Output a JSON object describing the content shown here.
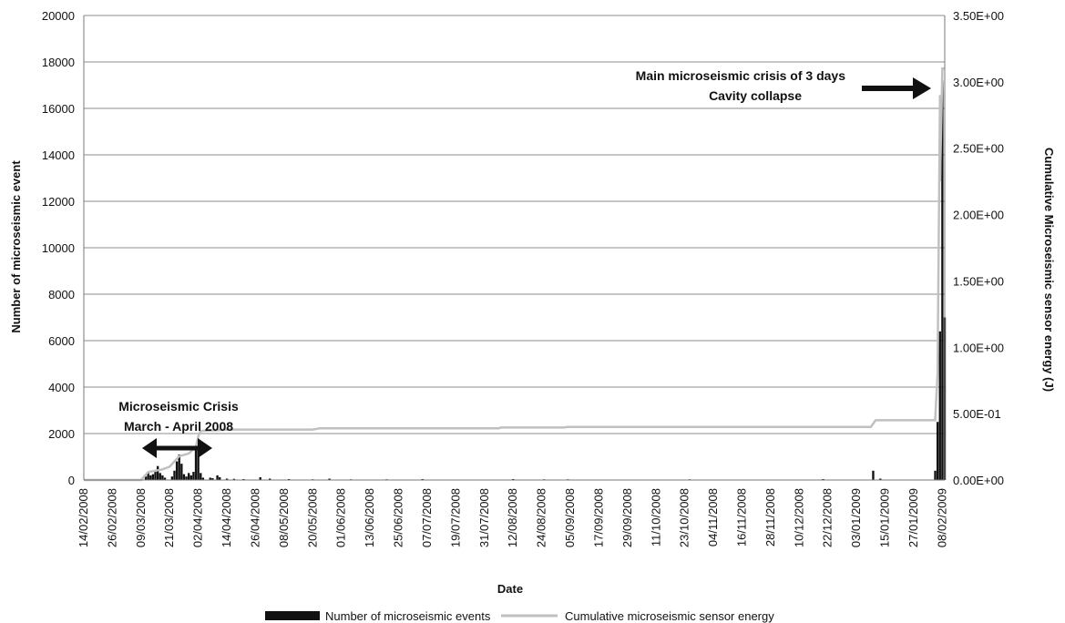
{
  "chart_data": {
    "type": "bar",
    "xlabel": "Date",
    "ylabel_left": "Number of microseismic event",
    "ylabel_right": "Cumulative Microseismic sensor energy (J)",
    "ylim_left": [
      0,
      20000
    ],
    "ylim_right": [
      0,
      3.5
    ],
    "yticks_left": [
      "0",
      "2000",
      "4000",
      "6000",
      "8000",
      "10000",
      "12000",
      "14000",
      "16000",
      "18000",
      "20000"
    ],
    "yticks_right": [
      "0.00E+00",
      "5.00E-01",
      "1.00E+00",
      "1.50E+00",
      "2.00E+00",
      "2.50E+00",
      "3.00E+00",
      "3.50E+00"
    ],
    "x_ticks": [
      "14/02/2008",
      "26/02/2008",
      "09/03/2008",
      "21/03/2008",
      "02/04/2008",
      "14/04/2008",
      "26/04/2008",
      "08/05/2008",
      "20/05/2008",
      "01/06/2008",
      "13/06/2008",
      "25/06/2008",
      "07/07/2008",
      "19/07/2008",
      "31/07/2008",
      "12/08/2008",
      "24/08/2008",
      "05/09/2008",
      "17/09/2008",
      "29/09/2008",
      "11/10/2008",
      "23/10/2008",
      "04/11/2008",
      "16/11/2008",
      "28/11/2008",
      "10/12/2008",
      "22/12/2008",
      "03/01/2009",
      "15/01/2009",
      "27/01/2009",
      "08/02/2009"
    ],
    "grid": true,
    "legend_position": "bottom",
    "series": [
      {
        "name": "Number of microseismic events",
        "axis": "left",
        "style": "bar",
        "color": "#111111",
        "points": [
          [
            "2008-03-11",
            150
          ],
          [
            "2008-03-12",
            300
          ],
          [
            "2008-03-13",
            200
          ],
          [
            "2008-03-14",
            250
          ],
          [
            "2008-03-15",
            350
          ],
          [
            "2008-03-16",
            600
          ],
          [
            "2008-03-17",
            300
          ],
          [
            "2008-03-18",
            200
          ],
          [
            "2008-03-19",
            100
          ],
          [
            "2008-03-22",
            150
          ],
          [
            "2008-03-23",
            400
          ],
          [
            "2008-03-24",
            800
          ],
          [
            "2008-03-25",
            1100
          ],
          [
            "2008-03-26",
            700
          ],
          [
            "2008-03-27",
            250
          ],
          [
            "2008-03-28",
            150
          ],
          [
            "2008-03-29",
            300
          ],
          [
            "2008-03-30",
            200
          ],
          [
            "2008-03-31",
            350
          ],
          [
            "2008-04-01",
            1300
          ],
          [
            "2008-04-02",
            1450
          ],
          [
            "2008-04-03",
            300
          ],
          [
            "2008-04-04",
            100
          ],
          [
            "2008-04-07",
            100
          ],
          [
            "2008-04-08",
            80
          ],
          [
            "2008-04-10",
            200
          ],
          [
            "2008-04-11",
            120
          ],
          [
            "2008-04-14",
            60
          ],
          [
            "2008-04-17",
            50
          ],
          [
            "2008-04-21",
            40
          ],
          [
            "2008-04-28",
            120
          ],
          [
            "2008-05-02",
            60
          ],
          [
            "2008-05-10",
            40
          ],
          [
            "2008-05-20",
            30
          ],
          [
            "2008-05-27",
            60
          ],
          [
            "2008-06-05",
            30
          ],
          [
            "2008-06-20",
            30
          ],
          [
            "2008-07-05",
            40
          ],
          [
            "2008-08-12",
            40
          ],
          [
            "2008-08-25",
            30
          ],
          [
            "2008-09-04",
            30
          ],
          [
            "2008-10-25",
            30
          ],
          [
            "2008-12-20",
            40
          ],
          [
            "2009-01-10",
            400
          ],
          [
            "2009-01-13",
            60
          ],
          [
            "2009-02-05",
            400
          ],
          [
            "2009-02-06",
            2500
          ],
          [
            "2009-02-07",
            6400
          ],
          [
            "2009-02-08",
            17200
          ],
          [
            "2009-02-09",
            7000
          ]
        ]
      },
      {
        "name": "Cumulative microseismic sensor energy",
        "axis": "right",
        "style": "line",
        "color": "#c0c0c0",
        "points": [
          [
            "2008-02-14",
            0.0
          ],
          [
            "2008-03-09",
            0.0
          ],
          [
            "2008-03-12",
            0.06
          ],
          [
            "2008-03-18",
            0.08
          ],
          [
            "2008-03-21",
            0.1
          ],
          [
            "2008-03-25",
            0.18
          ],
          [
            "2008-03-29",
            0.2
          ],
          [
            "2008-04-01",
            0.25
          ],
          [
            "2008-04-02",
            0.33
          ],
          [
            "2008-04-03",
            0.37
          ],
          [
            "2008-04-15",
            0.38
          ],
          [
            "2008-04-22",
            0.38
          ],
          [
            "2008-04-25",
            0.38
          ],
          [
            "2008-05-20",
            0.38
          ],
          [
            "2008-05-23",
            0.39
          ],
          [
            "2008-07-20",
            0.39
          ],
          [
            "2008-08-06",
            0.39
          ],
          [
            "2008-08-07",
            0.395
          ],
          [
            "2008-09-02",
            0.395
          ],
          [
            "2008-09-04",
            0.4
          ],
          [
            "2009-01-09",
            0.4
          ],
          [
            "2009-01-11",
            0.45
          ],
          [
            "2009-02-05",
            0.45
          ],
          [
            "2009-02-06",
            0.8
          ],
          [
            "2009-02-07",
            2.9
          ],
          [
            "2009-02-07",
            2.25
          ],
          [
            "2009-02-08",
            3.1
          ],
          [
            "2009-02-09",
            3.1
          ]
        ]
      }
    ],
    "annotations": {
      "crisis_1_line1": "Microseismic Crisis",
      "crisis_1_line2": "March - April 2008",
      "crisis_2_line1": "Main microseismic crisis of 3 days",
      "crisis_2_line2": "Cavity collapse"
    }
  }
}
